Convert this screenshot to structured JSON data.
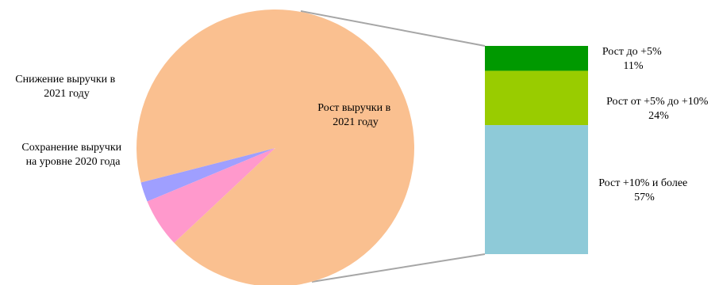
{
  "chart_data": {
    "type": "bar-of-pie",
    "pie": {
      "slices": [
        {
          "label_lines": [
            "Снижение выручки в",
            "2021 году"
          ],
          "value": 2.3,
          "color": "#9f9fff"
        },
        {
          "label_lines": [
            "Сохранение выручки",
            "на уровне 2020 года"
          ],
          "value": 5.7,
          "color": "#ff99cc"
        },
        {
          "label_lines": [
            "Рост выручки в",
            "2021 году"
          ],
          "value": 92,
          "color": "#fac090"
        }
      ]
    },
    "bar": {
      "segments": [
        {
          "label": "Рост до +5%",
          "percent": "11%",
          "value": 11,
          "color": "#009900"
        },
        {
          "label": "Рост от +5% до +10%",
          "percent": "24%",
          "value": 24,
          "color": "#99cc00"
        },
        {
          "label": "Рост +10% и более",
          "percent": "57%",
          "value": 57,
          "color": "#8ecad8"
        }
      ]
    }
  }
}
